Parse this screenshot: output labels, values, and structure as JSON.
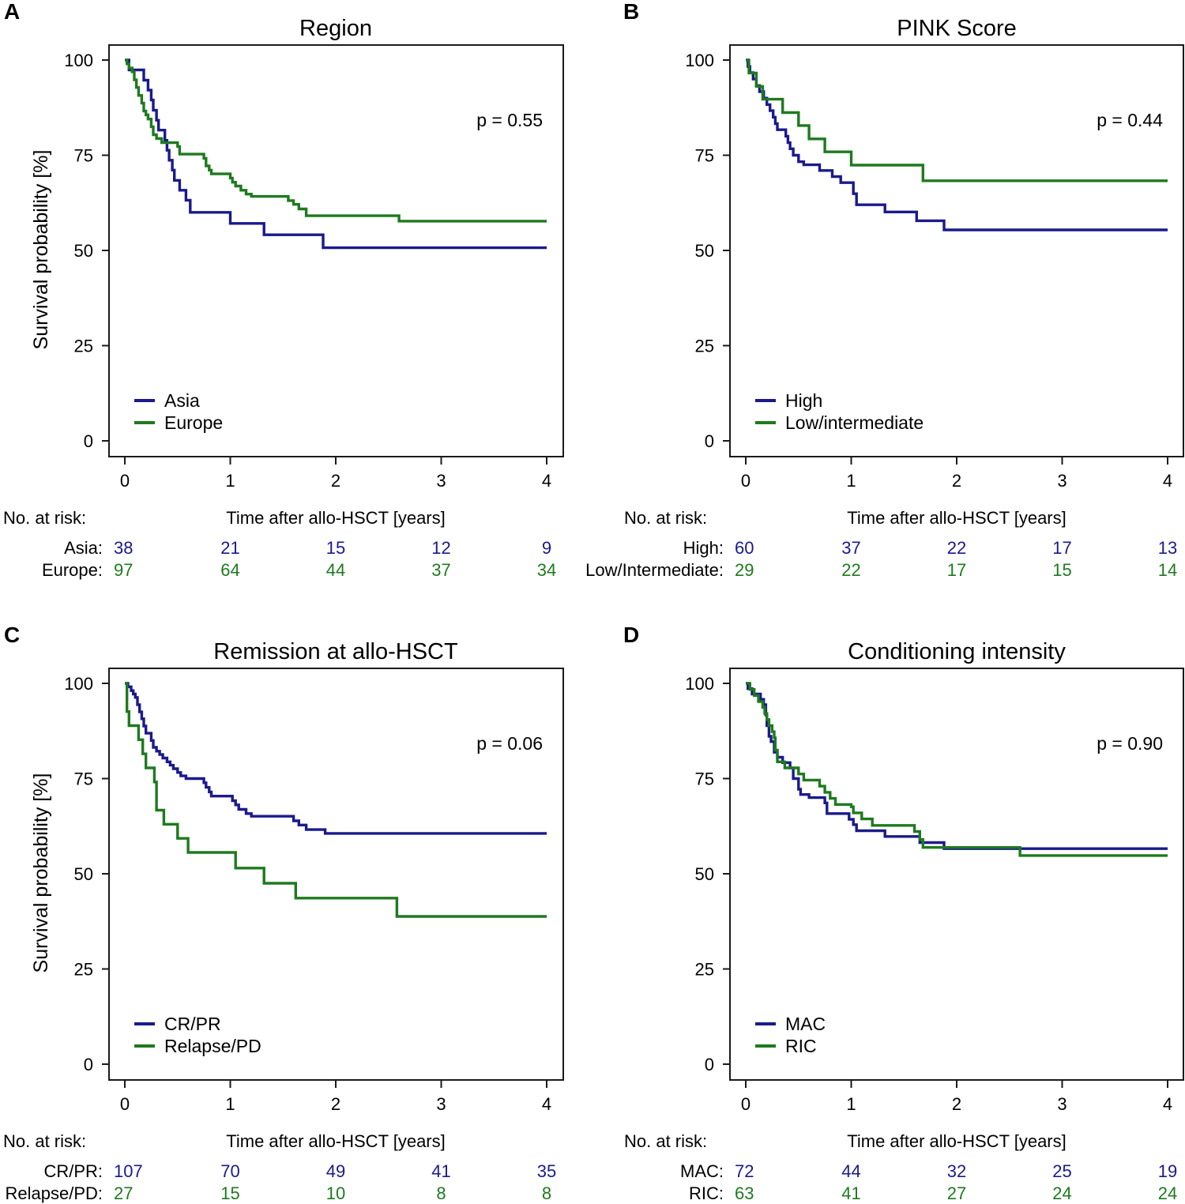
{
  "chart_data": [
    {
      "type": "line",
      "panel": "A",
      "title": "Region",
      "ylabel": "Survival probability [%]",
      "xlabel": "Time after allo-HSCT [years]",
      "xlim": [
        0,
        4
      ],
      "ylim": [
        0,
        100
      ],
      "xticks": [
        "0",
        "1",
        "2",
        "3",
        "4"
      ],
      "yticks": [
        "0",
        "25",
        "50",
        "75",
        "100"
      ],
      "p_value": "p = 0.55",
      "risk_header": "No. at risk:",
      "series": [
        {
          "name": "Asia",
          "risk_label": "Asia:",
          "color": "#1a1a8c",
          "points": [
            [
              0,
              100
            ],
            [
              0.04,
              97.4
            ],
            [
              0.18,
              94.7
            ],
            [
              0.22,
              92.1
            ],
            [
              0.25,
              89.5
            ],
            [
              0.27,
              86.8
            ],
            [
              0.3,
              84.2
            ],
            [
              0.32,
              81.6
            ],
            [
              0.38,
              78.9
            ],
            [
              0.4,
              76.3
            ],
            [
              0.42,
              73.7
            ],
            [
              0.45,
              71.1
            ],
            [
              0.47,
              68.4
            ],
            [
              0.52,
              65.8
            ],
            [
              0.58,
              63.2
            ],
            [
              0.62,
              60.0
            ],
            [
              1.0,
              57.1
            ],
            [
              1.32,
              54.1
            ],
            [
              1.88,
              50.7
            ],
            [
              4.0,
              50.7
            ]
          ],
          "at_risk": [
            "38",
            "21",
            "15",
            "12",
            "9"
          ]
        },
        {
          "name": "Europe",
          "risk_label": "Europe:",
          "color": "#1e7a1e",
          "points": [
            [
              0,
              100
            ],
            [
              0.02,
              99
            ],
            [
              0.04,
              97.9
            ],
            [
              0.07,
              96.9
            ],
            [
              0.09,
              94.8
            ],
            [
              0.11,
              92.8
            ],
            [
              0.13,
              90.7
            ],
            [
              0.16,
              88.7
            ],
            [
              0.18,
              86.6
            ],
            [
              0.2,
              85.6
            ],
            [
              0.22,
              84.5
            ],
            [
              0.25,
              82.5
            ],
            [
              0.27,
              80.4
            ],
            [
              0.3,
              79.4
            ],
            [
              0.35,
              78.3
            ],
            [
              0.5,
              77.3
            ],
            [
              0.52,
              75.3
            ],
            [
              0.75,
              74.2
            ],
            [
              0.77,
              72.2
            ],
            [
              0.8,
              71.1
            ],
            [
              0.82,
              70.1
            ],
            [
              1.0,
              69.0
            ],
            [
              1.02,
              67.9
            ],
            [
              1.05,
              66.9
            ],
            [
              1.1,
              65.8
            ],
            [
              1.15,
              64.8
            ],
            [
              1.2,
              64.2
            ],
            [
              1.55,
              63.1
            ],
            [
              1.6,
              62.1
            ],
            [
              1.65,
              60.9
            ],
            [
              1.72,
              59.1
            ],
            [
              2.6,
              57.7
            ],
            [
              4.0,
              57.7
            ]
          ],
          "at_risk": [
            "97",
            "64",
            "44",
            "37",
            "34"
          ]
        }
      ]
    },
    {
      "type": "line",
      "panel": "B",
      "title": "PINK Score",
      "ylabel": "",
      "xlabel": "Time after allo-HSCT [years]",
      "xlim": [
        0,
        4
      ],
      "ylim": [
        0,
        100
      ],
      "xticks": [
        "0",
        "1",
        "2",
        "3",
        "4"
      ],
      "yticks": [
        "0",
        "25",
        "50",
        "75",
        "100"
      ],
      "p_value": "p = 0.44",
      "risk_header": "No. at risk:",
      "series": [
        {
          "name": "High",
          "risk_label": "High:",
          "color": "#1a1a8c",
          "points": [
            [
              0,
              100
            ],
            [
              0.02,
              98.3
            ],
            [
              0.04,
              96.7
            ],
            [
              0.07,
              95.0
            ],
            [
              0.1,
              93.3
            ],
            [
              0.13,
              91.7
            ],
            [
              0.17,
              90.0
            ],
            [
              0.2,
              88.3
            ],
            [
              0.23,
              86.7
            ],
            [
              0.26,
              85.0
            ],
            [
              0.28,
              83.3
            ],
            [
              0.3,
              81.7
            ],
            [
              0.38,
              80.0
            ],
            [
              0.4,
              78.3
            ],
            [
              0.42,
              76.7
            ],
            [
              0.45,
              75.0
            ],
            [
              0.5,
              73.3
            ],
            [
              0.55,
              72.5
            ],
            [
              0.7,
              71.0
            ],
            [
              0.82,
              69.4
            ],
            [
              0.9,
              67.8
            ],
            [
              1.02,
              64.9
            ],
            [
              1.05,
              62.0
            ],
            [
              1.32,
              60.1
            ],
            [
              1.62,
              57.8
            ],
            [
              1.88,
              55.4
            ],
            [
              4.0,
              55.4
            ]
          ],
          "at_risk": [
            "60",
            "37",
            "22",
            "17",
            "13"
          ]
        },
        {
          "name": "Low/intermediate",
          "risk_label": "Low/Intermediate:",
          "color": "#1e7a1e",
          "points": [
            [
              0,
              100
            ],
            [
              0.03,
              96.6
            ],
            [
              0.1,
              93.1
            ],
            [
              0.16,
              89.7
            ],
            [
              0.35,
              86.2
            ],
            [
              0.5,
              82.8
            ],
            [
              0.6,
              79.3
            ],
            [
              0.75,
              75.9
            ],
            [
              1.0,
              72.4
            ],
            [
              1.68,
              68.3
            ],
            [
              4.0,
              68.3
            ]
          ],
          "at_risk": [
            "29",
            "22",
            "17",
            "15",
            "14"
          ]
        }
      ]
    },
    {
      "type": "line",
      "panel": "C",
      "title": "Remission at allo-HSCT",
      "ylabel": "Survival probability [%]",
      "xlabel": "Time after allo-HSCT [years]",
      "xlim": [
        0,
        4
      ],
      "ylim": [
        0,
        100
      ],
      "xticks": [
        "0",
        "1",
        "2",
        "3",
        "4"
      ],
      "yticks": [
        "0",
        "25",
        "50",
        "75",
        "100"
      ],
      "p_value": "p = 0.06",
      "risk_header": "No. at risk:",
      "series": [
        {
          "name": "CR/PR",
          "risk_label": "CR/PR:",
          "color": "#1a1a8c",
          "points": [
            [
              0,
              100
            ],
            [
              0.03,
              99.1
            ],
            [
              0.06,
              98.1
            ],
            [
              0.08,
              97.2
            ],
            [
              0.1,
              96.3
            ],
            [
              0.12,
              94.4
            ],
            [
              0.14,
              92.5
            ],
            [
              0.16,
              90.7
            ],
            [
              0.18,
              88.8
            ],
            [
              0.2,
              86.9
            ],
            [
              0.25,
              85.0
            ],
            [
              0.27,
              83.2
            ],
            [
              0.3,
              82.2
            ],
            [
              0.33,
              81.3
            ],
            [
              0.36,
              80.4
            ],
            [
              0.4,
              79.4
            ],
            [
              0.43,
              78.5
            ],
            [
              0.46,
              77.6
            ],
            [
              0.5,
              76.6
            ],
            [
              0.53,
              75.7
            ],
            [
              0.58,
              75.0
            ],
            [
              0.75,
              73.9
            ],
            [
              0.77,
              72.7
            ],
            [
              0.8,
              71.5
            ],
            [
              0.82,
              70.4
            ],
            [
              1.02,
              69.2
            ],
            [
              1.05,
              68.1
            ],
            [
              1.08,
              66.9
            ],
            [
              1.15,
              65.8
            ],
            [
              1.2,
              65.1
            ],
            [
              1.6,
              63.9
            ],
            [
              1.65,
              62.8
            ],
            [
              1.72,
              61.6
            ],
            [
              1.9,
              60.6
            ],
            [
              4.0,
              60.6
            ]
          ],
          "at_risk": [
            "107",
            "70",
            "49",
            "41",
            "35"
          ]
        },
        {
          "name": "Relapse/PD",
          "risk_label": "Relapse/PD:",
          "color": "#1e7a1e",
          "points": [
            [
              0,
              100
            ],
            [
              0.02,
              92.6
            ],
            [
              0.04,
              88.9
            ],
            [
              0.13,
              85.2
            ],
            [
              0.17,
              81.5
            ],
            [
              0.2,
              77.8
            ],
            [
              0.28,
              74.1
            ],
            [
              0.3,
              70.4
            ],
            [
              0.3,
              66.7
            ],
            [
              0.37,
              63.0
            ],
            [
              0.5,
              59.3
            ],
            [
              0.6,
              55.6
            ],
            [
              1.05,
              51.5
            ],
            [
              1.32,
              47.5
            ],
            [
              1.62,
              43.6
            ],
            [
              2.58,
              38.8
            ],
            [
              4.0,
              38.8
            ]
          ],
          "at_risk": [
            "27",
            "15",
            "10",
            "8",
            "8"
          ]
        }
      ]
    },
    {
      "type": "line",
      "panel": "D",
      "title": "Conditioning intensity",
      "ylabel": "",
      "xlabel": "Time after allo-HSCT [years]",
      "xlim": [
        0,
        4
      ],
      "ylim": [
        0,
        100
      ],
      "xticks": [
        "0",
        "1",
        "2",
        "3",
        "4"
      ],
      "yticks": [
        "0",
        "25",
        "50",
        "75",
        "100"
      ],
      "p_value": "p = 0.90",
      "risk_header": "No. at risk:",
      "series": [
        {
          "name": "MAC",
          "risk_label": "MAC:",
          "color": "#1a1a8c",
          "points": [
            [
              0,
              100
            ],
            [
              0.02,
              98.6
            ],
            [
              0.06,
              97.2
            ],
            [
              0.14,
              95.8
            ],
            [
              0.17,
              94.4
            ],
            [
              0.19,
              91.7
            ],
            [
              0.2,
              88.9
            ],
            [
              0.22,
              86.1
            ],
            [
              0.24,
              84.7
            ],
            [
              0.27,
              81.9
            ],
            [
              0.3,
              80.6
            ],
            [
              0.35,
              79.2
            ],
            [
              0.42,
              77.8
            ],
            [
              0.45,
              75.0
            ],
            [
              0.5,
              72.2
            ],
            [
              0.52,
              70.8
            ],
            [
              0.6,
              70.0
            ],
            [
              0.75,
              68.6
            ],
            [
              0.77,
              65.8
            ],
            [
              0.98,
              64.3
            ],
            [
              1.02,
              62.9
            ],
            [
              1.05,
              61.3
            ],
            [
              1.32,
              59.8
            ],
            [
              1.65,
              58.2
            ],
            [
              1.88,
              56.6
            ],
            [
              4.0,
              56.6
            ]
          ],
          "at_risk": [
            "72",
            "44",
            "32",
            "25",
            "19"
          ]
        },
        {
          "name": "RIC",
          "risk_label": "RIC:",
          "color": "#1e7a1e",
          "points": [
            [
              0,
              100
            ],
            [
              0.04,
              98.4
            ],
            [
              0.08,
              96.8
            ],
            [
              0.12,
              95.2
            ],
            [
              0.16,
              93.7
            ],
            [
              0.18,
              92.1
            ],
            [
              0.2,
              90.5
            ],
            [
              0.22,
              88.9
            ],
            [
              0.25,
              87.3
            ],
            [
              0.27,
              85.7
            ],
            [
              0.28,
              82.5
            ],
            [
              0.3,
              79.4
            ],
            [
              0.37,
              77.8
            ],
            [
              0.5,
              76.2
            ],
            [
              0.55,
              74.6
            ],
            [
              0.7,
              73.0
            ],
            [
              0.75,
              71.4
            ],
            [
              0.8,
              69.8
            ],
            [
              0.85,
              68.2
            ],
            [
              1.0,
              67.6
            ],
            [
              1.02,
              66.0
            ],
            [
              1.1,
              64.4
            ],
            [
              1.2,
              62.7
            ],
            [
              1.6,
              61.1
            ],
            [
              1.65,
              59.0
            ],
            [
              1.68,
              56.9
            ],
            [
              2.6,
              54.8
            ],
            [
              4.0,
              54.8
            ]
          ],
          "at_risk": [
            "63",
            "41",
            "27",
            "24",
            "24"
          ]
        }
      ]
    }
  ]
}
